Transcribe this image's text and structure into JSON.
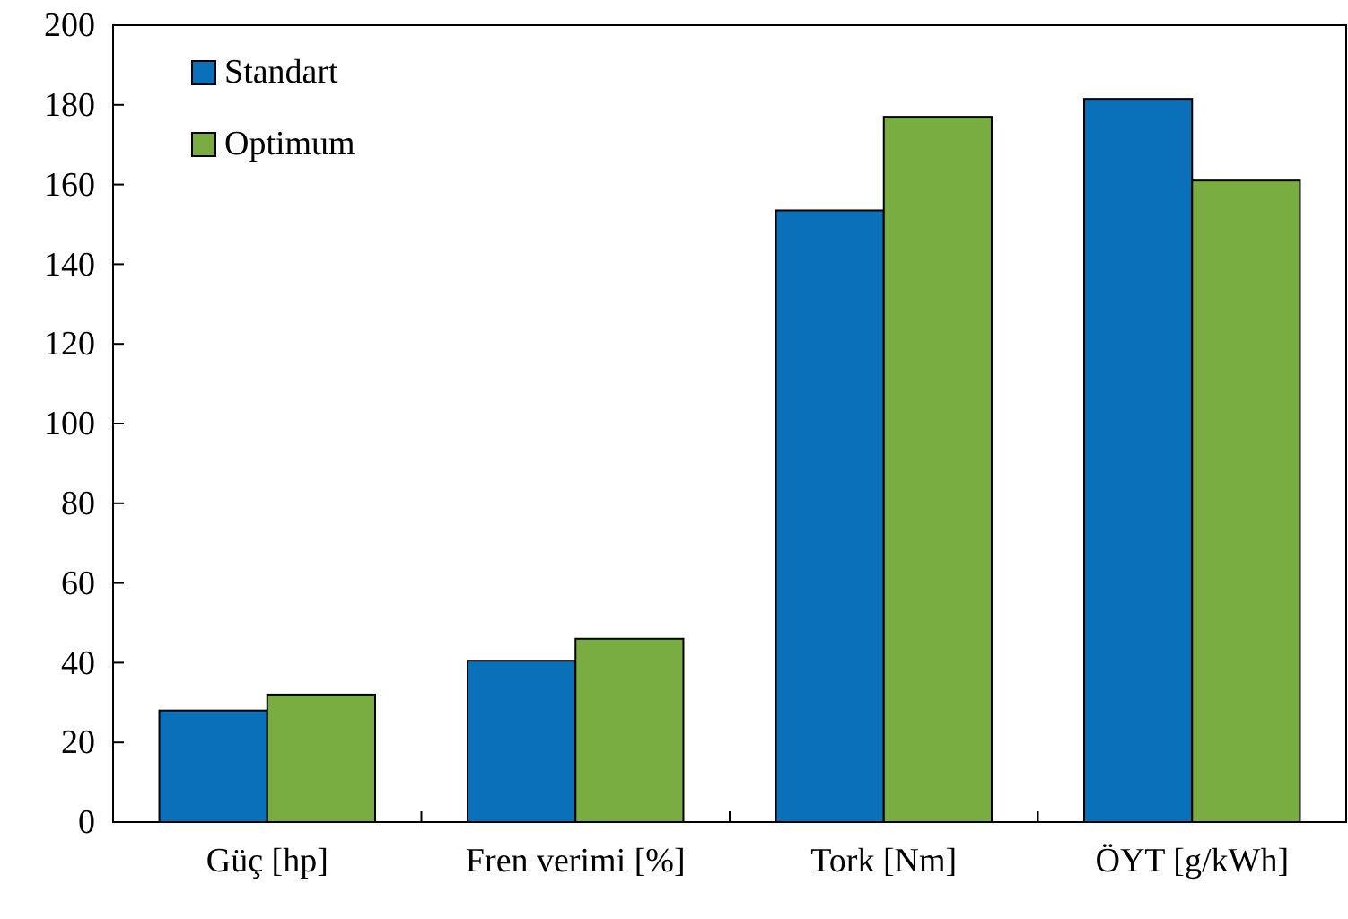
{
  "chart_data": {
    "type": "bar",
    "categories": [
      "Güç [hp]",
      "Fren verimi [%]",
      "Tork [Nm]",
      "ÖYT [g/kWh]"
    ],
    "series": [
      {
        "name": "Standart",
        "color": "#0a70ba",
        "values": [
          28,
          40.5,
          153.5,
          181.5
        ]
      },
      {
        "name": "Optimum",
        "color": "#79ad41",
        "values": [
          32,
          46,
          177,
          161
        ]
      }
    ],
    "ylim": [
      0,
      200
    ],
    "yticks": [
      0,
      20,
      40,
      60,
      80,
      100,
      120,
      140,
      160,
      180,
      200
    ],
    "grid": false,
    "legend": "top left"
  }
}
